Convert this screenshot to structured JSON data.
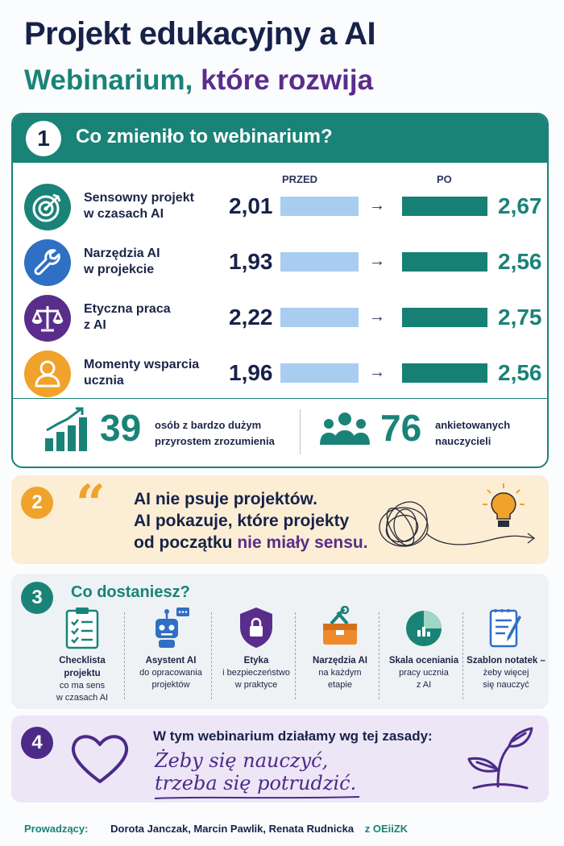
{
  "header": {
    "title": "Projekt edukacyjny a AI",
    "subtitle_part1": "Webinarium,",
    "subtitle_part2": "które rozwija"
  },
  "section1": {
    "number": "1",
    "title": "Co zmieniło to webinarium?",
    "col_before": "PRZED",
    "col_after": "PO",
    "arrow": "→",
    "rows": [
      {
        "line1": "Sensowny projekt",
        "line2": "w czasach AI",
        "before": "2,01",
        "after": "2,67",
        "icon": "target-icon",
        "color": "#1a8378"
      },
      {
        "line1": "Narzędzia AI",
        "line2": "w projekcie",
        "before": "1,93",
        "after": "2,56",
        "icon": "wrench-icon",
        "color": "#2f6fc4"
      },
      {
        "line1": "Etyczna praca",
        "line2": "z AI",
        "before": "2,22",
        "after": "2,75",
        "icon": "scales-icon",
        "color": "#5a2d8c"
      },
      {
        "line1": "Momenty wsparcia",
        "line2": "ucznia",
        "before": "1,96",
        "after": "2,56",
        "icon": "person-icon",
        "color": "#f0a22a"
      }
    ],
    "stats": [
      {
        "value": "39",
        "line1": "osób z bardzo dużym",
        "line2": "przyrostem zrozumienia",
        "icon": "growth-chart-icon"
      },
      {
        "value": "76",
        "line1": "ankietowanych",
        "line2": "nauczycieli",
        "icon": "people-group-icon"
      }
    ]
  },
  "section2": {
    "number": "2",
    "quote_mark": "“",
    "line1": "AI nie psuje projektów.",
    "line2": "AI pokazuje, które projekty",
    "line3_start": "od początku",
    "line3_highlight": "nie miały sensu."
  },
  "section3": {
    "number": "3",
    "title": "Co dostaniesz?",
    "features": [
      {
        "title1": "Checklista",
        "title2": "projektu",
        "desc1": "co ma sens",
        "desc2": "w czasach AI",
        "icon": "checklist-icon"
      },
      {
        "title1": "Asystent AI",
        "title2": "",
        "desc1": "do opracowania",
        "desc2": "projektów",
        "icon": "robot-icon"
      },
      {
        "title1": "Etyka",
        "title2": "",
        "desc1": "i bezpieczeństwo",
        "desc2": "w praktyce",
        "icon": "shield-lock-icon"
      },
      {
        "title1": "Narzędzia AI",
        "title2": "",
        "desc1": "na każdym",
        "desc2": "etapie",
        "icon": "toolbox-icon"
      },
      {
        "title1": "Skala oceniania",
        "title2": "",
        "desc1": "pracy ucznia",
        "desc2": "z AI",
        "icon": "pie-chart-icon"
      },
      {
        "title1": "Szablon notatek –",
        "title2": "",
        "desc1": "żeby więcej",
        "desc2": "się nauczyć",
        "icon": "notes-icon"
      }
    ]
  },
  "section4": {
    "number": "4",
    "lead": "W tym webinarium działamy wg tej zasady:",
    "hand1": "Żeby się nauczyć,",
    "hand2": "trzeba się potrudzić."
  },
  "footer": {
    "label": "Prowadzący:",
    "names": "Dorota Janczak, Marcin Pawlik, Renata Rudnicka",
    "org": "z OEiiZK"
  }
}
